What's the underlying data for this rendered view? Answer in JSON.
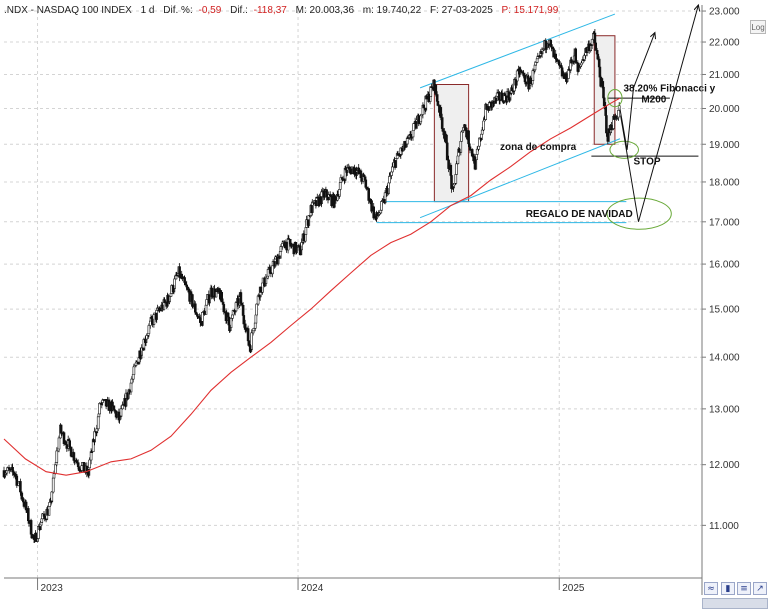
{
  "header": {
    "symbol": ".NDX - NASDAQ 100 INDEX",
    "period": "1 d",
    "dif_pct_label": "Dif. %:",
    "dif_pct_value": "-0,59",
    "dif_label": "Dif.:",
    "dif_value": "-118,37",
    "max_label": "M: 20.003,36",
    "min_label": "m: 19.740,22",
    "date_label": "F: 27-03-2025",
    "price_label": "P: 15.171,99"
  },
  "buttons": {
    "log": "Log"
  },
  "icons": [
    "wave-icon",
    "candle-icon",
    "bars-icon",
    "scroll-arrow-icon"
  ],
  "colors": {
    "candles": "#111111",
    "ma200": "#e03030",
    "channel": "#2fb8e6",
    "ellipse": "#6aaa3a",
    "box_fill": "#efefef",
    "box_border": "#8a2a2a",
    "negative": "#d02020"
  },
  "chart_data": {
    "type": "line",
    "title": "",
    "xlabel": "",
    "ylabel": "",
    "x_range": [
      "2022-11-15",
      "2025-07-20"
    ],
    "ylim": [
      10200,
      23200
    ],
    "y_ticks": [
      "23.000",
      "22.000",
      "21.000",
      "20.000",
      "19.000",
      "18.000",
      "17.000",
      "16.000",
      "15.000",
      "14.000",
      "13.000",
      "12.000",
      "11.000"
    ],
    "x_ticks": [
      {
        "label": "2023",
        "date": "2023-01-01"
      },
      {
        "label": "2024",
        "date": "2024-01-01"
      },
      {
        "label": "2025",
        "date": "2025-01-01"
      }
    ],
    "grid": true,
    "series": [
      {
        "style": "candlestick-approx",
        "points": [
          [
            "2022-11-15",
            11900
          ],
          [
            "2022-12-01",
            11850
          ],
          [
            "2022-12-15",
            11300
          ],
          [
            "2022-12-28",
            10750
          ],
          [
            "2023-01-06",
            11050
          ],
          [
            "2023-01-19",
            11300
          ],
          [
            "2023-02-02",
            12600
          ],
          [
            "2023-02-13",
            12350
          ],
          [
            "2023-02-28",
            12000
          ],
          [
            "2023-03-13",
            11850
          ],
          [
            "2023-03-31",
            13100
          ],
          [
            "2023-04-14",
            13050
          ],
          [
            "2023-04-26",
            12800
          ],
          [
            "2023-05-08",
            13300
          ],
          [
            "2023-05-25",
            14100
          ],
          [
            "2023-06-09",
            14700
          ],
          [
            "2023-06-20",
            14950
          ],
          [
            "2023-07-03",
            15200
          ],
          [
            "2023-07-18",
            15800
          ],
          [
            "2023-08-02",
            15300
          ],
          [
            "2023-08-18",
            14700
          ],
          [
            "2023-09-01",
            15400
          ],
          [
            "2023-09-14",
            15300
          ],
          [
            "2023-09-27",
            14650
          ],
          [
            "2023-10-12",
            15250
          ],
          [
            "2023-10-26",
            14150
          ],
          [
            "2023-11-08",
            15400
          ],
          [
            "2023-11-29",
            16000
          ],
          [
            "2023-12-14",
            16500
          ],
          [
            "2024-01-04",
            16300
          ],
          [
            "2024-01-19",
            17300
          ],
          [
            "2024-02-08",
            17700
          ],
          [
            "2024-02-21",
            17500
          ],
          [
            "2024-03-08",
            18300
          ],
          [
            "2024-03-21",
            18350
          ],
          [
            "2024-04-04",
            18000
          ],
          [
            "2024-04-19",
            17050
          ],
          [
            "2024-04-30",
            17450
          ],
          [
            "2024-05-15",
            18500
          ],
          [
            "2024-06-06",
            19150
          ],
          [
            "2024-06-20",
            19800
          ],
          [
            "2024-07-10",
            20700
          ],
          [
            "2024-07-26",
            19100
          ],
          [
            "2024-08-05",
            17700
          ],
          [
            "2024-08-20",
            19600
          ],
          [
            "2024-09-06",
            18450
          ],
          [
            "2024-09-20",
            19950
          ],
          [
            "2024-10-08",
            20300
          ],
          [
            "2024-10-25",
            20400
          ],
          [
            "2024-11-07",
            21100
          ],
          [
            "2024-11-20",
            20700
          ],
          [
            "2024-12-06",
            21550
          ],
          [
            "2024-12-16",
            22100
          ],
          [
            "2024-12-27",
            21400
          ],
          [
            "2025-01-10",
            20850
          ],
          [
            "2025-01-23",
            21650
          ],
          [
            "2025-01-27",
            21050
          ],
          [
            "2025-02-07",
            21700
          ],
          [
            "2025-02-19",
            22150
          ],
          [
            "2025-03-03",
            20500
          ],
          [
            "2025-03-10",
            19200
          ],
          [
            "2025-03-17",
            19600
          ],
          [
            "2025-03-27",
            20003
          ]
        ]
      },
      {
        "name": "M200",
        "style": "line",
        "points": [
          [
            "2022-11-15",
            12450
          ],
          [
            "2022-12-15",
            12100
          ],
          [
            "2023-01-13",
            11880
          ],
          [
            "2023-02-10",
            11820
          ],
          [
            "2023-03-10",
            11880
          ],
          [
            "2023-04-14",
            12050
          ],
          [
            "2023-05-12",
            12100
          ],
          [
            "2023-06-09",
            12250
          ],
          [
            "2023-07-07",
            12500
          ],
          [
            "2023-08-04",
            12900
          ],
          [
            "2023-09-01",
            13350
          ],
          [
            "2023-09-29",
            13700
          ],
          [
            "2023-10-27",
            14000
          ],
          [
            "2023-11-24",
            14300
          ],
          [
            "2023-12-22",
            14650
          ],
          [
            "2024-01-19",
            15000
          ],
          [
            "2024-02-16",
            15400
          ],
          [
            "2024-03-15",
            15800
          ],
          [
            "2024-04-12",
            16200
          ],
          [
            "2024-05-10",
            16500
          ],
          [
            "2024-06-07",
            16700
          ],
          [
            "2024-07-05",
            17000
          ],
          [
            "2024-08-02",
            17400
          ],
          [
            "2024-08-30",
            17650
          ],
          [
            "2024-09-27",
            18050
          ],
          [
            "2024-10-25",
            18400
          ],
          [
            "2024-11-22",
            18800
          ],
          [
            "2024-12-20",
            19150
          ],
          [
            "2025-01-17",
            19450
          ],
          [
            "2025-02-14",
            19800
          ],
          [
            "2025-03-14",
            20150
          ],
          [
            "2025-03-27",
            20300
          ]
        ]
      }
    ],
    "channel_lines": [
      {
        "from": [
          "2024-06-20",
          20600
        ],
        "to": [
          "2025-03-20",
          22900
        ]
      },
      {
        "from": [
          "2024-06-20",
          17100
        ],
        "to": [
          "2025-03-27",
          19150
        ]
      }
    ],
    "shaded_boxes": [
      {
        "from": [
          "2024-07-10",
          17500
        ],
        "to": [
          "2024-08-27",
          20700
        ]
      },
      {
        "from": [
          "2025-02-19",
          19000
        ],
        "to": [
          "2025-03-20",
          22200
        ]
      }
    ],
    "horizontal_lines": [
      {
        "from": "2024-05-01",
        "to": "2025-04-05",
        "y": 17500,
        "color": "channel"
      },
      {
        "from": "2024-04-20",
        "to": "2025-04-05",
        "y": 16980,
        "color": "channel"
      },
      {
        "from": "2025-03-10",
        "to": "2025-06-05",
        "y": 20300,
        "color": "black"
      },
      {
        "from": "2025-02-15",
        "to": "2025-07-15",
        "y": 18680,
        "color": "black"
      }
    ],
    "ellipses": [
      {
        "center": [
          "2025-03-20",
          20300
        ],
        "rx_days": 10,
        "ry_value": 250
      },
      {
        "center": [
          "2025-04-02",
          18850
        ],
        "rx_days": 20,
        "ry_value": 230
      },
      {
        "center": [
          "2025-04-23",
          17200
        ],
        "rx_days": 45,
        "ry_value": 380
      }
    ],
    "projection_paths": [
      [
        [
          "2025-03-27",
          20003
        ],
        [
          "2025-04-06",
          18850
        ],
        [
          "2025-04-15",
          20600
        ],
        [
          "2025-05-15",
          22300
        ]
      ],
      [
        [
          "2025-03-28",
          19800
        ],
        [
          "2025-04-22",
          17000
        ],
        [
          "2025-07-15",
          23200
        ]
      ]
    ],
    "annotations": [
      {
        "text": "38.20% Fibonacci y",
        "at": [
          "2025-04-01",
          20500
        ]
      },
      {
        "text": "M200",
        "at": [
          "2025-04-26",
          20170
        ]
      },
      {
        "text": "zona de compra",
        "at": [
          "2024-10-10",
          18850
        ]
      },
      {
        "text": "STOP",
        "at": [
          "2025-04-15",
          18460
        ]
      },
      {
        "text": "REGALO DE NAVIDAD",
        "at": [
          "2024-11-15",
          17120
        ]
      }
    ]
  }
}
